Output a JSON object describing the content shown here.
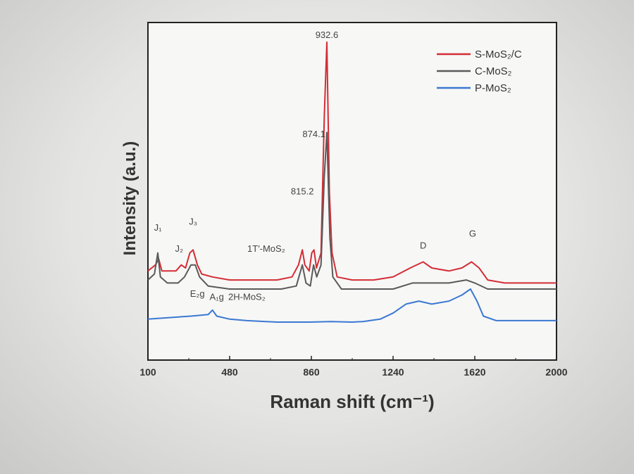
{
  "chart_data": {
    "type": "line",
    "xlabel": "Raman shift (cm⁻¹)",
    "ylabel": "Intensity (a.u.)",
    "xlim": [
      100,
      2000
    ],
    "x_ticks": [
      "100",
      "480",
      "860",
      "1240",
      "1620",
      "2000"
    ],
    "y_ticks": [],
    "ylim": [
      0,
      100
    ],
    "legend_position": "top-right",
    "grid": false,
    "series": [
      {
        "name": "S-MoS₂/C",
        "color": "#d42d35",
        "points": [
          [
            100,
            24
          ],
          [
            135,
            26
          ],
          [
            150,
            28
          ],
          [
            165,
            24
          ],
          [
            200,
            24
          ],
          [
            230,
            24
          ],
          [
            255,
            26
          ],
          [
            275,
            25
          ],
          [
            295,
            30
          ],
          [
            310,
            31
          ],
          [
            330,
            26
          ],
          [
            350,
            23
          ],
          [
            400,
            22
          ],
          [
            480,
            21
          ],
          [
            600,
            21
          ],
          [
            700,
            21
          ],
          [
            770,
            22
          ],
          [
            800,
            26
          ],
          [
            818,
            31
          ],
          [
            830,
            26
          ],
          [
            850,
            24
          ],
          [
            862,
            30
          ],
          [
            872,
            31
          ],
          [
            884,
            25
          ],
          [
            905,
            30
          ],
          [
            920,
            75
          ],
          [
            932,
            100
          ],
          [
            944,
            50
          ],
          [
            956,
            30
          ],
          [
            980,
            22
          ],
          [
            1050,
            21
          ],
          [
            1150,
            21
          ],
          [
            1240,
            22
          ],
          [
            1320,
            25
          ],
          [
            1380,
            27
          ],
          [
            1420,
            25
          ],
          [
            1500,
            24
          ],
          [
            1560,
            25
          ],
          [
            1605,
            27
          ],
          [
            1640,
            25
          ],
          [
            1680,
            21
          ],
          [
            1760,
            20
          ],
          [
            1880,
            20
          ],
          [
            2000,
            20
          ]
        ]
      },
      {
        "name": "C-MoS₂",
        "color": "#5a5a5a",
        "points": [
          [
            100,
            21
          ],
          [
            130,
            23
          ],
          [
            146,
            30
          ],
          [
            158,
            22
          ],
          [
            190,
            20
          ],
          [
            240,
            20
          ],
          [
            270,
            22
          ],
          [
            300,
            26
          ],
          [
            320,
            26
          ],
          [
            340,
            22
          ],
          [
            380,
            19
          ],
          [
            480,
            18
          ],
          [
            600,
            18
          ],
          [
            720,
            18
          ],
          [
            790,
            19
          ],
          [
            818,
            26
          ],
          [
            835,
            20
          ],
          [
            855,
            19
          ],
          [
            870,
            26
          ],
          [
            885,
            22
          ],
          [
            905,
            26
          ],
          [
            920,
            55
          ],
          [
            932,
            70
          ],
          [
            946,
            35
          ],
          [
            960,
            22
          ],
          [
            1000,
            18
          ],
          [
            1100,
            18
          ],
          [
            1240,
            18
          ],
          [
            1330,
            20
          ],
          [
            1400,
            20
          ],
          [
            1500,
            20
          ],
          [
            1580,
            21
          ],
          [
            1620,
            20
          ],
          [
            1680,
            18
          ],
          [
            1800,
            18
          ],
          [
            2000,
            18
          ]
        ]
      },
      {
        "name": "P-MoS₂",
        "color": "#3b78d1",
        "points": [
          [
            100,
            8
          ],
          [
            200,
            8.5
          ],
          [
            300,
            9
          ],
          [
            380,
            9.5
          ],
          [
            400,
            11
          ],
          [
            420,
            9
          ],
          [
            480,
            8
          ],
          [
            560,
            7.5
          ],
          [
            700,
            7
          ],
          [
            850,
            7
          ],
          [
            950,
            7.2
          ],
          [
            1050,
            7
          ],
          [
            1100,
            7.2
          ],
          [
            1180,
            8
          ],
          [
            1240,
            10
          ],
          [
            1300,
            13
          ],
          [
            1360,
            14
          ],
          [
            1420,
            13
          ],
          [
            1500,
            14
          ],
          [
            1560,
            16
          ],
          [
            1600,
            18
          ],
          [
            1630,
            14
          ],
          [
            1660,
            9
          ],
          [
            1720,
            7.5
          ],
          [
            1850,
            7.5
          ],
          [
            2000,
            7.5
          ]
        ]
      }
    ],
    "annotations": [
      {
        "text": "932.6",
        "x": 932,
        "y": 100
      },
      {
        "text": "874.1",
        "x": 872,
        "y": 67
      },
      {
        "text": "815.2",
        "x": 818,
        "y": 48
      },
      {
        "text": "J₁",
        "x": 146,
        "y": 36
      },
      {
        "text": "J₂",
        "x": 245,
        "y": 29
      },
      {
        "text": "J₃",
        "x": 310,
        "y": 38
      },
      {
        "text": "1T′-MoS₂",
        "x": 650,
        "y": 29
      },
      {
        "text": "D",
        "x": 1380,
        "y": 30
      },
      {
        "text": "G",
        "x": 1610,
        "y": 34
      },
      {
        "text": "E₂g",
        "x": 330,
        "y": 14
      },
      {
        "text": "A₁g",
        "x": 420,
        "y": 13
      },
      {
        "text": "2H-MoS₂",
        "x": 560,
        "y": 13
      }
    ]
  }
}
